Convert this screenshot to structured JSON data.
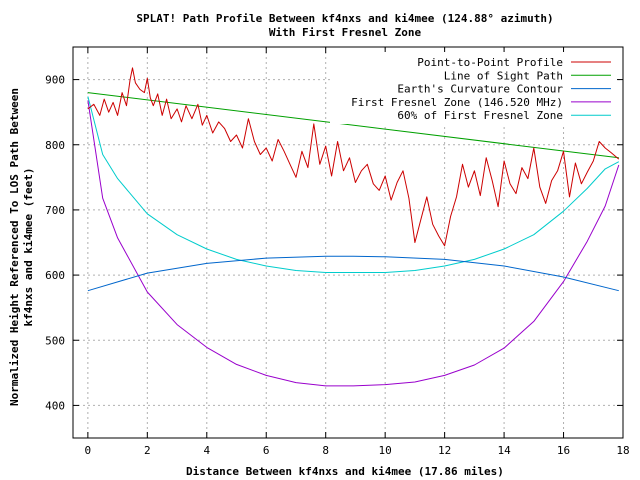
{
  "chart_data": {
    "type": "line",
    "title": "SPLAT! Path Profile Between kf4nxs and ki4mee (124.88° azimuth)",
    "subtitle": "With First Fresnel Zone",
    "xlabel": "Distance Between kf4nxs and ki4mee (17.86 miles)",
    "ylabel_line1": "Normalized Height Referenced To LOS Path Between",
    "ylabel_line2": "kf4nxs and ki4mee (feet)",
    "xlim": [
      -0.5,
      18
    ],
    "ylim": [
      350,
      950
    ],
    "xticks": [
      0,
      2,
      4,
      6,
      8,
      10,
      12,
      14,
      16,
      18
    ],
    "yticks": [
      400,
      500,
      600,
      700,
      800,
      900
    ],
    "grid": true,
    "legend_position": "top-right",
    "series": [
      {
        "name": "Point-to-Point Profile",
        "color": "#cc0000",
        "x": [
          0,
          0.2,
          0.4,
          0.55,
          0.7,
          0.85,
          1.0,
          1.15,
          1.3,
          1.42,
          1.5,
          1.6,
          1.75,
          1.9,
          2.0,
          2.1,
          2.2,
          2.35,
          2.5,
          2.65,
          2.8,
          3.0,
          3.15,
          3.3,
          3.5,
          3.7,
          3.85,
          4.0,
          4.2,
          4.4,
          4.6,
          4.8,
          5.0,
          5.2,
          5.4,
          5.6,
          5.8,
          6.0,
          6.2,
          6.4,
          6.6,
          6.8,
          7.0,
          7.2,
          7.4,
          7.6,
          7.8,
          8.0,
          8.2,
          8.4,
          8.6,
          8.8,
          9.0,
          9.2,
          9.4,
          9.6,
          9.8,
          10.0,
          10.2,
          10.4,
          10.6,
          10.8,
          11.0,
          11.2,
          11.4,
          11.6,
          11.8,
          12.0,
          12.2,
          12.4,
          12.6,
          12.8,
          13.0,
          13.2,
          13.4,
          13.6,
          13.8,
          14.0,
          14.2,
          14.4,
          14.6,
          14.8,
          15.0,
          15.2,
          15.4,
          15.6,
          15.8,
          16.0,
          16.2,
          16.4,
          16.6,
          16.8,
          17.0,
          17.2,
          17.4,
          17.6,
          17.86
        ],
        "y": [
          855,
          862,
          845,
          870,
          850,
          865,
          845,
          880,
          860,
          900,
          918,
          895,
          885,
          880,
          902,
          872,
          860,
          878,
          845,
          870,
          840,
          855,
          835,
          860,
          840,
          862,
          830,
          845,
          818,
          835,
          825,
          805,
          815,
          795,
          840,
          805,
          785,
          795,
          775,
          808,
          790,
          770,
          750,
          790,
          765,
          832,
          770,
          798,
          752,
          805,
          760,
          780,
          742,
          760,
          770,
          740,
          730,
          752,
          715,
          742,
          760,
          718,
          650,
          685,
          720,
          678,
          660,
          645,
          690,
          720,
          770,
          735,
          760,
          722,
          780,
          745,
          705,
          775,
          740,
          725,
          765,
          748,
          795,
          735,
          710,
          745,
          760,
          790,
          720,
          772,
          740,
          758,
          775,
          805,
          795,
          788,
          778
        ]
      },
      {
        "name": "Line of Sight Path",
        "color": "#00a000",
        "x": [
          0,
          17.86
        ],
        "y": [
          880,
          780
        ]
      },
      {
        "name": "Earth's Curvature Contour",
        "color": "#0066cc",
        "x": [
          0,
          2,
          4,
          6,
          8,
          8.93,
          10,
          12,
          14,
          16,
          17.86
        ],
        "y": [
          576,
          603,
          618,
          626,
          629,
          629,
          628,
          624,
          614,
          597,
          576
        ]
      },
      {
        "name": "First Fresnel Zone (146.520 MHz)",
        "color": "#9900cc",
        "x": [
          0,
          0.5,
          1,
          2,
          3,
          4,
          5,
          6,
          7,
          8,
          8.93,
          10,
          11,
          12,
          13,
          14,
          15,
          16,
          16.8,
          17.4,
          17.86
        ],
        "y": [
          868,
          718,
          657,
          574,
          524,
          489,
          463,
          446,
          435,
          430,
          430,
          432,
          436,
          446,
          462,
          488,
          529,
          590,
          652,
          706,
          769
        ]
      },
      {
        "name": "60% of First Fresnel Zone",
        "color": "#00cccc",
        "x": [
          0,
          0.5,
          1,
          2,
          3,
          4,
          5,
          6,
          7,
          8,
          8.93,
          10,
          11,
          12,
          13,
          14,
          15,
          16,
          16.8,
          17.4,
          17.86
        ],
        "y": [
          874,
          785,
          748,
          694,
          662,
          640,
          624,
          614,
          607,
          604,
          604,
          604,
          607,
          614,
          624,
          640,
          662,
          698,
          733,
          763,
          774
        ]
      }
    ]
  }
}
